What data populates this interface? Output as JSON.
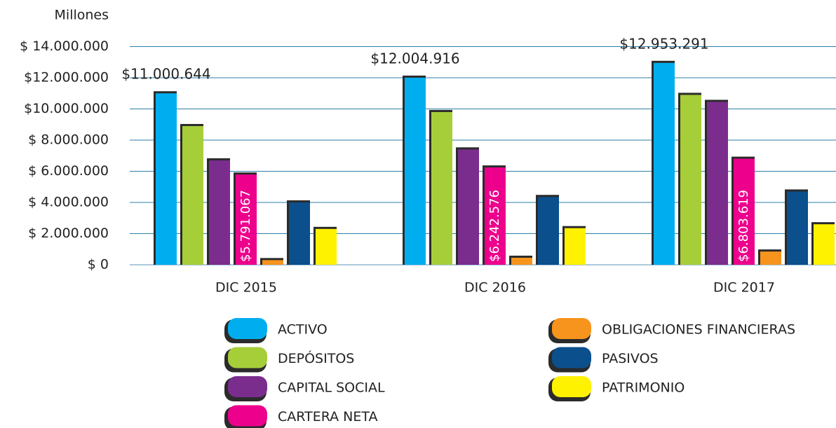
{
  "chart_data": {
    "type": "bar",
    "y_axis_label": "Millones",
    "categories": [
      "DIC 2015",
      "DIC 2016",
      "DIC 2017"
    ],
    "series": [
      {
        "name": "ACTIVO",
        "color": "#00aeef",
        "values": [
          11000644,
          12004916,
          12953291
        ],
        "value_labels": [
          "$11.000.644",
          "$12.004.916",
          "$12.953.291"
        ]
      },
      {
        "name": "DEPÓSITOS",
        "color": "#a6ce39",
        "values": [
          8900000,
          9800000,
          10900000
        ]
      },
      {
        "name": "CAPITAL SOCIAL",
        "color": "#7b2d8e",
        "values": [
          6700000,
          7400000,
          10450000
        ]
      },
      {
        "name": "CARTERA NETA",
        "color": "#ec008c",
        "values": [
          5791067,
          6242576,
          6803619
        ],
        "value_labels": [
          "$5.791.067",
          "$6.242.576",
          "$6.803.619"
        ]
      },
      {
        "name": "OBLIGACIONES FINANCIERAS",
        "color": "#f7941d",
        "values": [
          300000,
          450000,
          850000
        ]
      },
      {
        "name": "PASIVOS",
        "color": "#0b4f8c",
        "values": [
          4000000,
          4350000,
          4700000
        ]
      },
      {
        "name": "PATRIMONIO",
        "color": "#fff200",
        "values": [
          2300000,
          2350000,
          2600000
        ]
      }
    ],
    "ylim": [
      0,
      16000000
    ],
    "yticks": [
      {
        "value": 0,
        "label": "$ 0"
      },
      {
        "value": 2000000,
        "label": "$ 2.000.000"
      },
      {
        "value": 4000000,
        "label": "$ 4.000.000"
      },
      {
        "value": 6000000,
        "label": "$ 6.000.000"
      },
      {
        "value": 8000000,
        "label": "$ 8.000.000"
      },
      {
        "value": 10000000,
        "label": "$10.000.000"
      },
      {
        "value": 12000000,
        "label": "$12.000.000"
      },
      {
        "value": 14000000,
        "label": "$ 14.000.000"
      }
    ],
    "grid": true
  }
}
